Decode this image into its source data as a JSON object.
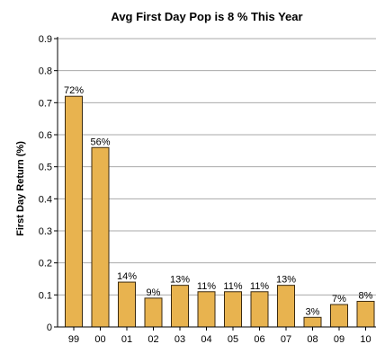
{
  "chart_data": {
    "type": "bar",
    "title": "Avg First Day Pop is 8 % This Year",
    "xlabel": "",
    "ylabel": "First Day Return (%)",
    "categories": [
      "99",
      "00",
      "01",
      "02",
      "03",
      "04",
      "05",
      "06",
      "07",
      "08",
      "09",
      "10"
    ],
    "values": [
      0.72,
      0.56,
      0.14,
      0.09,
      0.13,
      0.11,
      0.11,
      0.11,
      0.13,
      0.03,
      0.07,
      0.08
    ],
    "data_labels": [
      "72%",
      "56%",
      "14%",
      "9%",
      "13%",
      "11%",
      "11%",
      "11%",
      "13%",
      "3%",
      "7%",
      "8%"
    ],
    "ylim": [
      0,
      0.9
    ],
    "yticks": [
      0,
      0.1,
      0.2,
      0.3,
      0.4,
      0.5,
      0.6,
      0.7,
      0.8,
      0.9
    ],
    "ytick_labels": [
      "0",
      "0.1",
      "0.2",
      "0.3",
      "0.4",
      "0.5",
      "0.6",
      "0.7",
      "0.8",
      "0.9"
    ],
    "grid": true,
    "legend": "none",
    "colors": {
      "bar_fill": "#E8B34F",
      "bar_stroke": "#3A2A10",
      "gridline": "#A9A9A9",
      "axis": "#000000",
      "background": "#FFFFFF"
    }
  }
}
